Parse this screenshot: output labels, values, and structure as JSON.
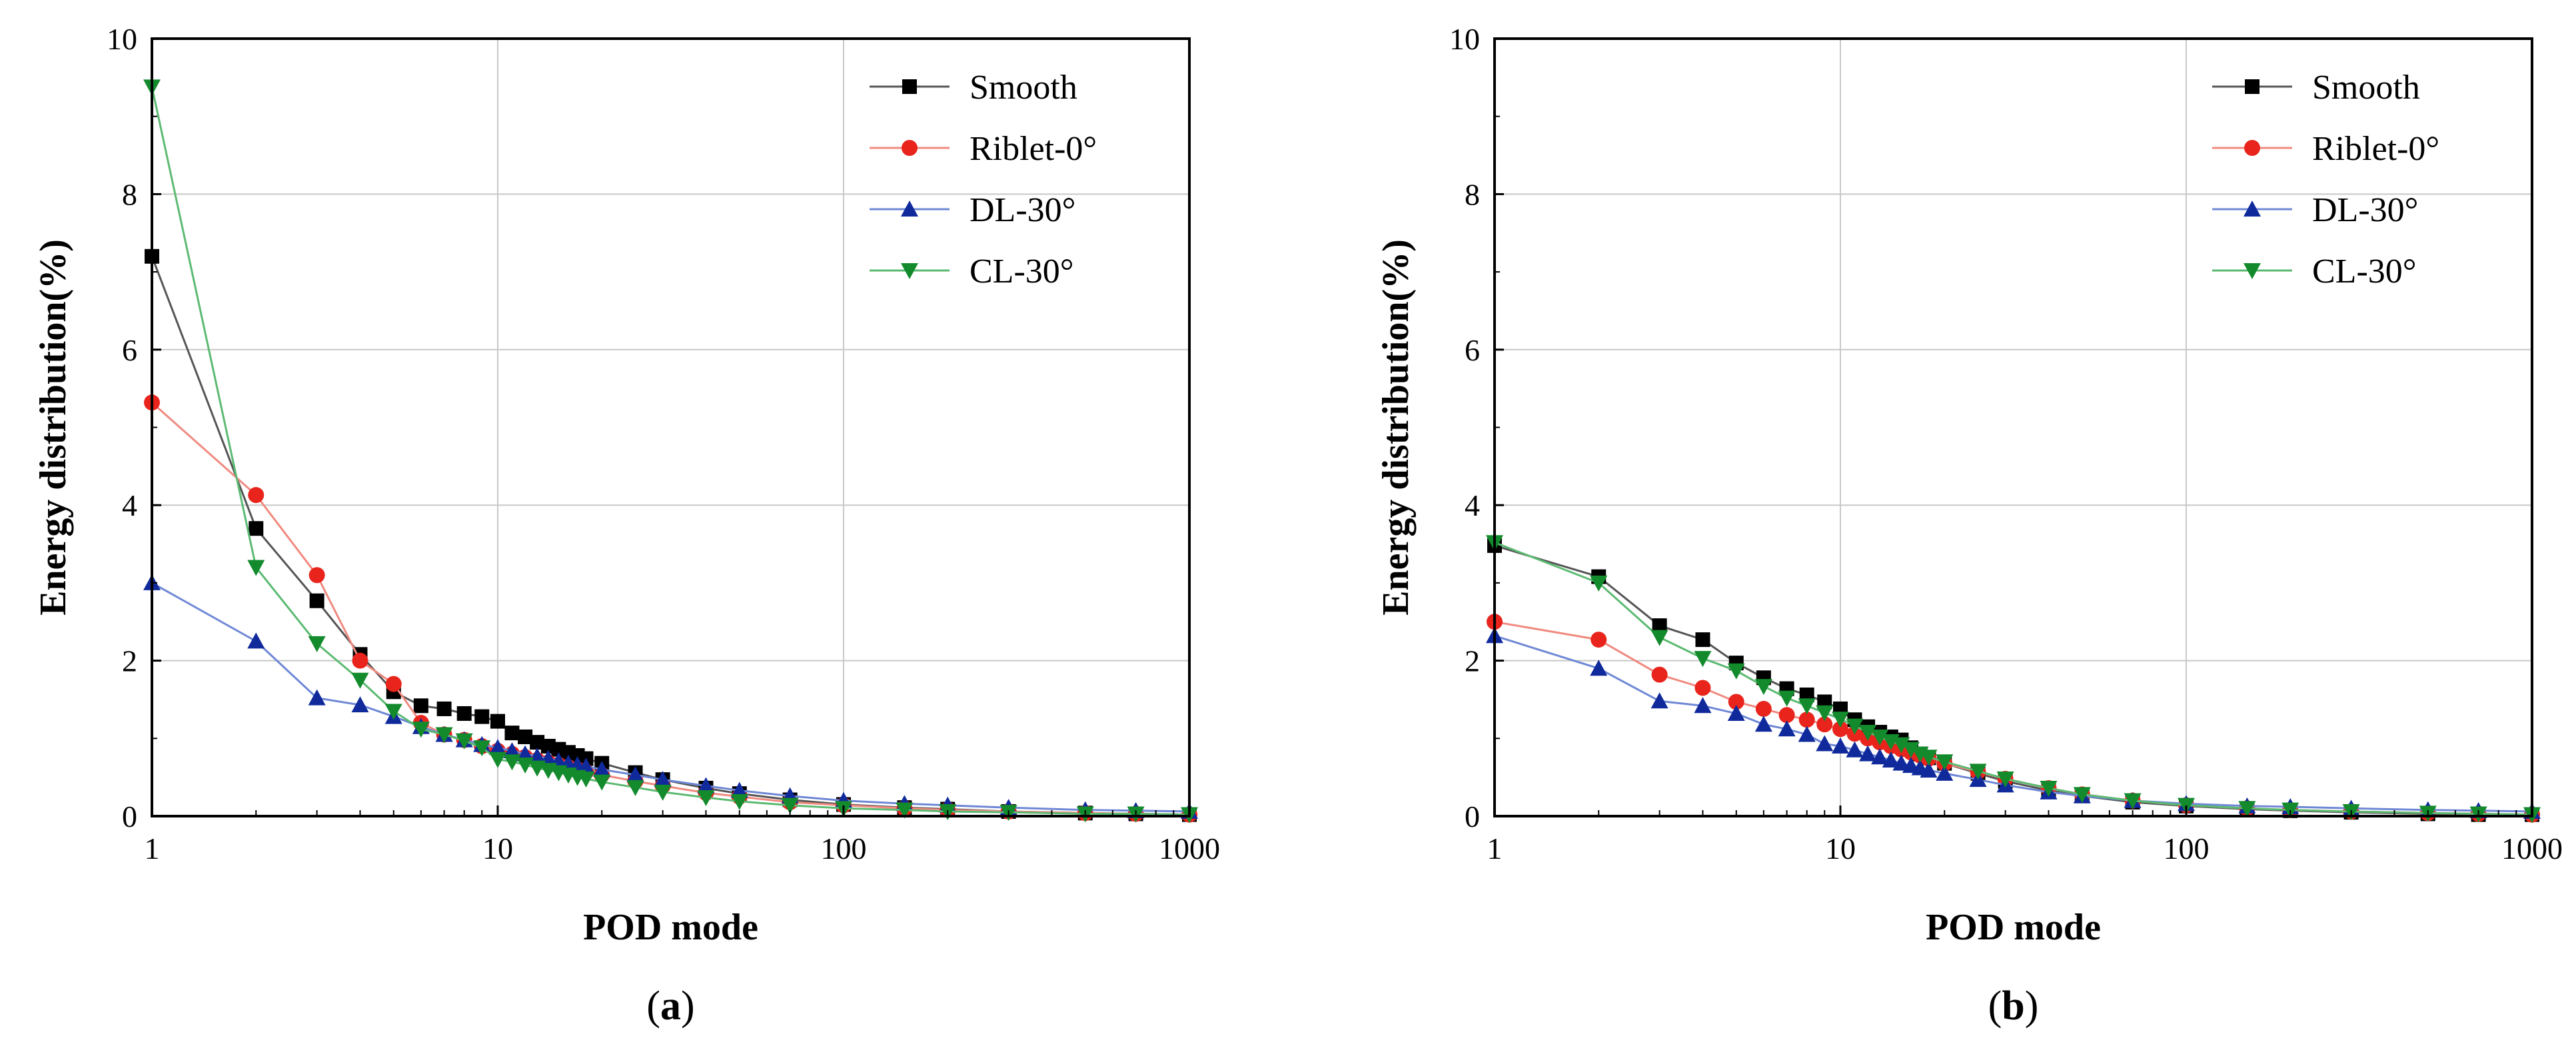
{
  "chart_data": [
    {
      "type": "line",
      "caption_open": "(",
      "caption_letter": "a",
      "caption_close": ")",
      "title": "",
      "xlabel": "POD mode",
      "ylabel": "Energy distribution(%)",
      "xscale": "log",
      "xlim": [
        1,
        1000
      ],
      "ylim": [
        0,
        10
      ],
      "xticks": [
        1,
        10,
        100,
        1000
      ],
      "xtick_labels": [
        "1",
        "10",
        "100",
        "1000"
      ],
      "yticks": [
        0,
        2,
        4,
        6,
        8,
        10
      ],
      "ytick_labels": [
        "0",
        "2",
        "4",
        "6",
        "8",
        "10"
      ],
      "grid": true,
      "legend_position": "top-right",
      "series": [
        {
          "name": "Smooth",
          "color": "#000000",
          "line_color": "#555555",
          "marker": "square",
          "x": [
            1,
            2,
            3,
            4,
            5,
            6,
            7,
            8,
            9,
            10,
            11,
            12,
            13,
            14,
            15,
            16,
            17,
            18,
            20,
            25,
            30,
            40,
            50,
            70,
            100,
            150,
            200,
            300,
            500,
            700,
            1000
          ],
          "y": [
            7.2,
            3.7,
            2.77,
            2.08,
            1.6,
            1.42,
            1.38,
            1.32,
            1.28,
            1.22,
            1.07,
            1.02,
            0.95,
            0.9,
            0.86,
            0.82,
            0.78,
            0.74,
            0.68,
            0.56,
            0.47,
            0.36,
            0.29,
            0.21,
            0.15,
            0.11,
            0.09,
            0.06,
            0.04,
            0.03,
            0.02
          ]
        },
        {
          "name": "Riblet-0°",
          "color": "#e8241c",
          "line_color": "#f08a80",
          "marker": "circle",
          "x": [
            1,
            2,
            3,
            4,
            5,
            6,
            7,
            8,
            9,
            10,
            11,
            12,
            13,
            14,
            15,
            16,
            17,
            18,
            20,
            25,
            30,
            40,
            50,
            70,
            100,
            150,
            200,
            300,
            500,
            700,
            1000
          ],
          "y": [
            5.32,
            4.13,
            3.1,
            2.0,
            1.7,
            1.2,
            1.05,
            0.98,
            0.9,
            0.84,
            0.8,
            0.76,
            0.72,
            0.69,
            0.66,
            0.63,
            0.6,
            0.57,
            0.53,
            0.45,
            0.39,
            0.3,
            0.25,
            0.18,
            0.14,
            0.1,
            0.08,
            0.06,
            0.04,
            0.03,
            0.02
          ]
        },
        {
          "name": "DL-30°",
          "color": "#102a9c",
          "line_color": "#6f88d6",
          "marker": "triangle-up",
          "x": [
            1,
            2,
            3,
            4,
            5,
            6,
            7,
            8,
            9,
            10,
            11,
            12,
            13,
            14,
            15,
            16,
            17,
            18,
            20,
            25,
            30,
            40,
            50,
            70,
            100,
            150,
            200,
            300,
            500,
            700,
            1000
          ],
          "y": [
            3.0,
            2.25,
            1.52,
            1.43,
            1.28,
            1.15,
            1.05,
            0.98,
            0.92,
            0.88,
            0.84,
            0.8,
            0.77,
            0.74,
            0.71,
            0.68,
            0.66,
            0.64,
            0.6,
            0.53,
            0.47,
            0.39,
            0.33,
            0.26,
            0.2,
            0.16,
            0.14,
            0.11,
            0.08,
            0.07,
            0.06
          ]
        },
        {
          "name": "CL-30°",
          "color": "#138a2c",
          "line_color": "#5cba72",
          "marker": "triangle-down",
          "x": [
            1,
            2,
            3,
            4,
            5,
            6,
            7,
            8,
            9,
            10,
            11,
            12,
            13,
            14,
            15,
            16,
            17,
            18,
            20,
            25,
            30,
            40,
            50,
            70,
            100,
            150,
            200,
            300,
            500,
            700,
            1000
          ],
          "y": [
            9.38,
            3.2,
            2.22,
            1.75,
            1.35,
            1.12,
            1.05,
            0.97,
            0.88,
            0.73,
            0.7,
            0.66,
            0.62,
            0.59,
            0.56,
            0.53,
            0.5,
            0.48,
            0.44,
            0.37,
            0.31,
            0.24,
            0.19,
            0.14,
            0.1,
            0.08,
            0.06,
            0.05,
            0.03,
            0.03,
            0.02
          ]
        }
      ]
    },
    {
      "type": "line",
      "caption_open": "(",
      "caption_letter": "b",
      "caption_close": ")",
      "title": "",
      "xlabel": "POD mode",
      "ylabel": "Energy distribution(%)",
      "xscale": "log",
      "xlim": [
        1,
        1000
      ],
      "ylim": [
        0,
        10
      ],
      "xticks": [
        1,
        10,
        100,
        1000
      ],
      "xtick_labels": [
        "1",
        "10",
        "100",
        "1000"
      ],
      "yticks": [
        0,
        2,
        4,
        6,
        8,
        10
      ],
      "ytick_labels": [
        "0",
        "2",
        "4",
        "6",
        "8",
        "10"
      ],
      "grid": true,
      "legend_position": "top-right",
      "series": [
        {
          "name": "Smooth",
          "color": "#000000",
          "line_color": "#555555",
          "marker": "square",
          "x": [
            1,
            2,
            3,
            4,
            5,
            6,
            7,
            8,
            9,
            10,
            11,
            12,
            13,
            14,
            15,
            16,
            17,
            18,
            20,
            25,
            30,
            40,
            50,
            70,
            100,
            150,
            200,
            300,
            500,
            700,
            1000
          ],
          "y": [
            3.48,
            3.08,
            2.45,
            2.27,
            1.97,
            1.78,
            1.64,
            1.56,
            1.47,
            1.38,
            1.24,
            1.15,
            1.08,
            1.02,
            0.98,
            0.88,
            0.8,
            0.75,
            0.68,
            0.55,
            0.45,
            0.33,
            0.26,
            0.18,
            0.13,
            0.09,
            0.07,
            0.05,
            0.03,
            0.02,
            0.02
          ]
        },
        {
          "name": "Riblet-0°",
          "color": "#e8241c",
          "line_color": "#f08a80",
          "marker": "circle",
          "x": [
            1,
            2,
            3,
            4,
            5,
            6,
            7,
            8,
            9,
            10,
            11,
            12,
            13,
            14,
            15,
            16,
            17,
            18,
            20,
            25,
            30,
            40,
            50,
            70,
            100,
            150,
            200,
            300,
            500,
            700,
            1000
          ],
          "y": [
            2.5,
            2.27,
            1.82,
            1.65,
            1.47,
            1.38,
            1.3,
            1.24,
            1.18,
            1.12,
            1.06,
            1.0,
            0.95,
            0.9,
            0.86,
            0.82,
            0.78,
            0.74,
            0.68,
            0.57,
            0.48,
            0.36,
            0.28,
            0.2,
            0.14,
            0.1,
            0.08,
            0.06,
            0.04,
            0.03,
            0.02
          ]
        },
        {
          "name": "DL-30°",
          "color": "#102a9c",
          "line_color": "#6f88d6",
          "marker": "triangle-up",
          "x": [
            1,
            2,
            3,
            4,
            5,
            6,
            7,
            8,
            9,
            10,
            11,
            12,
            13,
            14,
            15,
            16,
            17,
            18,
            20,
            25,
            30,
            40,
            50,
            70,
            100,
            150,
            200,
            300,
            500,
            700,
            1000
          ],
          "y": [
            2.32,
            1.9,
            1.48,
            1.42,
            1.32,
            1.18,
            1.12,
            1.05,
            0.93,
            0.9,
            0.85,
            0.8,
            0.76,
            0.72,
            0.68,
            0.65,
            0.62,
            0.59,
            0.55,
            0.47,
            0.4,
            0.31,
            0.26,
            0.2,
            0.16,
            0.13,
            0.12,
            0.1,
            0.08,
            0.07,
            0.06
          ]
        },
        {
          "name": "CL-30°",
          "color": "#138a2c",
          "line_color": "#5cba72",
          "marker": "triangle-down",
          "x": [
            1,
            2,
            3,
            4,
            5,
            6,
            7,
            8,
            9,
            10,
            11,
            12,
            13,
            14,
            15,
            16,
            17,
            18,
            20,
            25,
            30,
            40,
            50,
            70,
            100,
            150,
            200,
            300,
            500,
            700,
            1000
          ],
          "y": [
            3.52,
            3.0,
            2.3,
            2.03,
            1.87,
            1.67,
            1.52,
            1.42,
            1.33,
            1.25,
            1.16,
            1.08,
            1.02,
            0.96,
            0.92,
            0.86,
            0.8,
            0.76,
            0.7,
            0.58,
            0.48,
            0.36,
            0.28,
            0.2,
            0.14,
            0.1,
            0.08,
            0.06,
            0.04,
            0.03,
            0.02
          ]
        }
      ]
    }
  ]
}
